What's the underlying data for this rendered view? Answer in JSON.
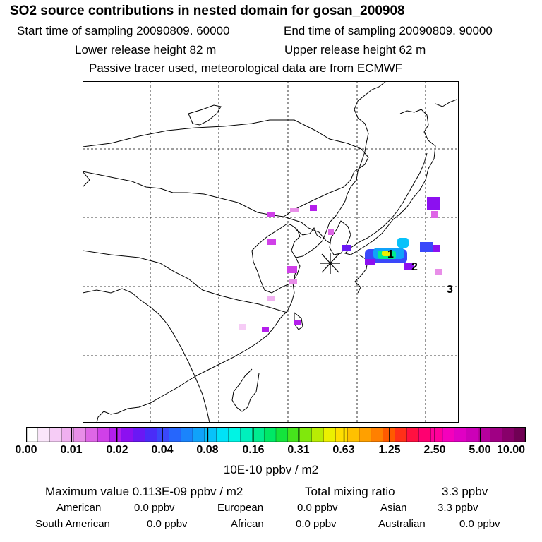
{
  "header": {
    "title": "SO2 source contributions in nested domain for gosan_200908",
    "start_label": "Start time of sampling 20090809. 60000",
    "end_label": "End time of sampling 20090809. 90000",
    "lower_label": "Lower release height   82 m",
    "upper_label": "Upper release height   62 m",
    "tracer_label": "Passive tracer used, meteorological data are from ECMWF"
  },
  "chart_data": {
    "type": "heatmap",
    "map_region": "East Asia nested domain",
    "receptor": "gosan",
    "receptor_marker": "asterisk",
    "source_markers": [
      "1",
      "2",
      "3"
    ],
    "colorbar": {
      "unit": "10E-10 ppbv / m2",
      "tick_labels": [
        "0.00",
        "0.01",
        "0.02",
        "0.04",
        "0.08",
        "0.16",
        "0.31",
        "0.63",
        "1.25",
        "2.50",
        "5.00",
        "10.00"
      ],
      "colors": [
        "#ffffff",
        "#fbe6fb",
        "#f6ccf6",
        "#f0b0f0",
        "#e88ee8",
        "#de66e6",
        "#d040e8",
        "#b41eec",
        "#8c10f0",
        "#6a18f4",
        "#4a2cf8",
        "#3a48fa",
        "#2666fc",
        "#1a84fc",
        "#10a2fa",
        "#08c2fa",
        "#00e2f8",
        "#00f4e4",
        "#00f0bc",
        "#00ec90",
        "#00e866",
        "#14e43c",
        "#46e41c",
        "#80e80c",
        "#b8ec04",
        "#ecf000",
        "#ffde00",
        "#ffc000",
        "#ffa000",
        "#ff8000",
        "#ff5a00",
        "#ff3018",
        "#ff1040",
        "#ff0070",
        "#ff009a",
        "#f400bc",
        "#e000c4",
        "#cc00b8",
        "#b6009e",
        "#a00084",
        "#88006a",
        "#700054"
      ]
    },
    "stats": {
      "max_label": "Maximum value  0.113E-09 ppbv / m2",
      "total_label": "Total mixing ratio",
      "total_value": "3.3 ppbv"
    },
    "regions": [
      {
        "name": "American",
        "value": "0.0 ppbv"
      },
      {
        "name": "European",
        "value": "0.0 ppbv"
      },
      {
        "name": "Asian",
        "value": "3.3 ppbv"
      },
      {
        "name": "South American",
        "value": "0.0 ppbv"
      },
      {
        "name": "African",
        "value": "0.0 ppbv"
      },
      {
        "name": "Australian",
        "value": "0.0 ppbv"
      }
    ]
  }
}
